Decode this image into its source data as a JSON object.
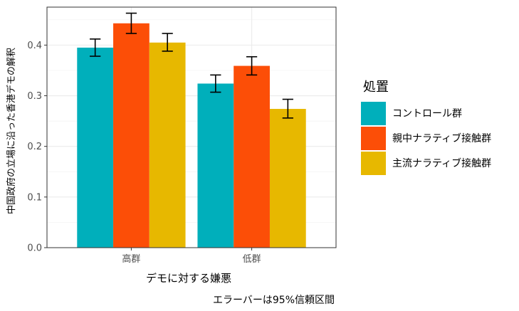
{
  "chart_data": {
    "type": "bar",
    "categories": [
      "高群",
      "低群"
    ],
    "series": [
      {
        "name": "コントロール群",
        "color": "#00AFBB",
        "values": [
          0.395,
          0.324
        ],
        "ci_low": [
          0.378,
          0.307
        ],
        "ci_high": [
          0.412,
          0.341
        ]
      },
      {
        "name": "親中ナラティブ接触群",
        "color": "#FC4E07",
        "values": [
          0.443,
          0.359
        ],
        "ci_low": [
          0.423,
          0.341
        ],
        "ci_high": [
          0.463,
          0.377
        ]
      },
      {
        "name": "主流ナラティブ接触群",
        "color": "#E7B800",
        "values": [
          0.405,
          0.274
        ],
        "ci_low": [
          0.388,
          0.256
        ],
        "ci_high": [
          0.423,
          0.293
        ]
      }
    ],
    "xlabel": "デモに対する嫌悪",
    "ylabel": "中国政府の立場に沿った香港デモの解釈",
    "ylim": [
      0,
      0.475
    ],
    "yticks": [
      "0.0",
      "0.1",
      "0.2",
      "0.3",
      "0.4"
    ],
    "ytick_values": [
      0,
      0.1,
      0.2,
      0.3,
      0.4
    ],
    "legend_title": "処置",
    "legend_position": "right",
    "grid": true,
    "caption": "エラーバーは95%信頼区間"
  }
}
